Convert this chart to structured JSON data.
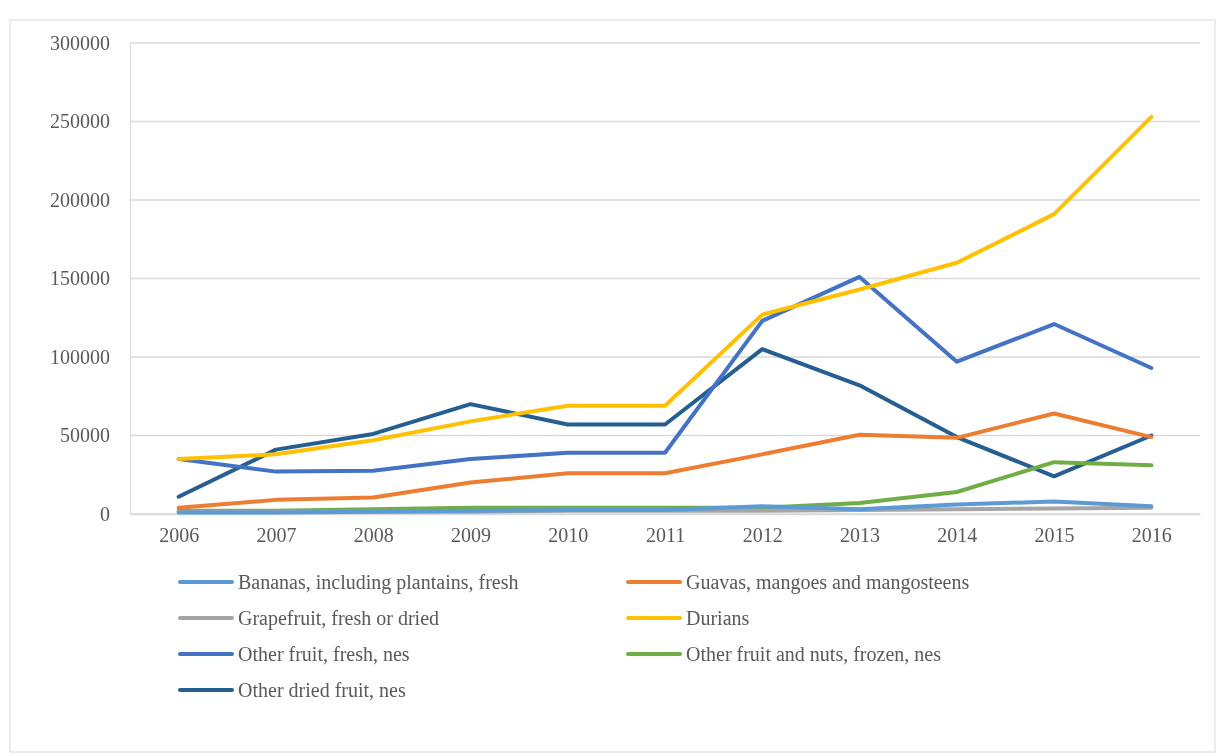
{
  "chart_data": {
    "type": "line",
    "categories": [
      "2006",
      "2007",
      "2008",
      "2009",
      "2010",
      "2011",
      "2012",
      "2013",
      "2014",
      "2015",
      "2016"
    ],
    "ylim": [
      0,
      300000
    ],
    "yticks": [
      0,
      50000,
      100000,
      150000,
      200000,
      250000,
      300000
    ],
    "grid": "y",
    "legend": "bottom",
    "marker": "none",
    "series": [
      {
        "name": "Bananas, including plantains, fresh",
        "color": "#5b9bd5",
        "values": [
          1000,
          1000,
          1500,
          2000,
          2500,
          2500,
          5000,
          3000,
          6000,
          8000,
          5000
        ]
      },
      {
        "name": "Guavas, mangoes and mangosteens",
        "color": "#ed7d31",
        "values": [
          4000,
          9000,
          10500,
          20000,
          26000,
          26000,
          38000,
          50500,
          48500,
          64000,
          49000
        ]
      },
      {
        "name": "Grapefruit, fresh or dried",
        "color": "#a5a5a5",
        "values": [
          1500,
          1500,
          1500,
          1500,
          2000,
          2000,
          2000,
          2500,
          3000,
          3500,
          4000
        ]
      },
      {
        "name": "Durians",
        "color": "#ffc000",
        "values": [
          35000,
          38000,
          47000,
          59000,
          69000,
          69000,
          127000,
          143000,
          160000,
          191000,
          253000
        ]
      },
      {
        "name": "Other fruit, fresh, nes",
        "color": "#4472c4",
        "values": [
          35000,
          27000,
          27500,
          35000,
          39000,
          39000,
          123000,
          151000,
          97000,
          121000,
          93000
        ]
      },
      {
        "name": "Other fruit and nuts, frozen, nes",
        "color": "#70ad47",
        "values": [
          2000,
          2000,
          3000,
          4000,
          4000,
          4000,
          4000,
          7000,
          14000,
          33000,
          31000
        ]
      },
      {
        "name": "Other dried fruit, nes",
        "color": "#255e91",
        "values": [
          11000,
          41000,
          51000,
          70000,
          57000,
          57000,
          105000,
          82000,
          49000,
          24000,
          50000
        ]
      }
    ]
  }
}
